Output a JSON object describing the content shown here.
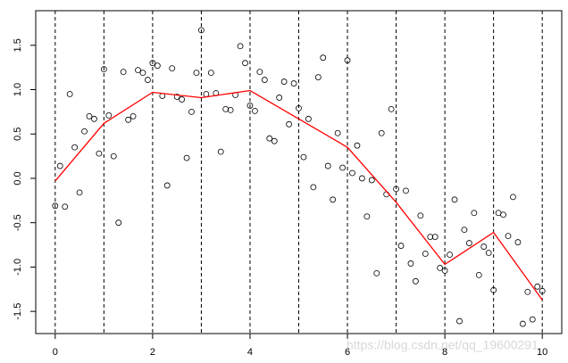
{
  "chart_data": {
    "type": "scatter",
    "x": [
      0,
      0.1,
      0.2,
      0.3,
      0.4,
      0.5,
      0.6,
      0.7,
      0.8,
      0.9,
      1,
      1.1,
      1.2,
      1.3,
      1.4,
      1.5,
      1.6,
      1.7,
      1.8,
      1.9,
      2,
      2.1,
      2.2,
      2.3,
      2.4,
      2.5,
      2.6,
      2.7,
      2.8,
      2.9,
      3,
      3.1,
      3.2,
      3.3,
      3.4,
      3.5,
      3.6,
      3.7,
      3.8,
      3.9,
      4,
      4.1,
      4.2,
      4.3,
      4.4,
      4.5,
      4.6,
      4.7,
      4.8,
      4.9,
      5,
      5.1,
      5.2,
      5.3,
      5.4,
      5.5,
      5.6,
      5.7,
      5.8,
      5.9,
      6,
      6.1,
      6.2,
      6.3,
      6.4,
      6.5,
      6.6,
      6.7,
      6.8,
      6.9,
      7,
      7.1,
      7.2,
      7.3,
      7.4,
      7.5,
      7.6,
      7.7,
      7.8,
      7.9,
      8,
      8.1,
      8.2,
      8.3,
      8.4,
      8.5,
      8.6,
      8.7,
      8.8,
      8.9,
      9,
      9.1,
      9.2,
      9.3,
      9.4,
      9.5,
      9.6,
      9.7,
      9.8,
      9.9,
      10
    ],
    "values": [
      -0.31,
      0.14,
      -0.32,
      0.95,
      0.35,
      -0.16,
      0.53,
      0.7,
      0.67,
      0.28,
      1.23,
      0.71,
      0.25,
      -0.5,
      1.2,
      0.66,
      0.7,
      1.22,
      1.19,
      1.11,
      1.3,
      1.27,
      0.93,
      -0.08,
      1.24,
      0.92,
      0.89,
      0.23,
      0.75,
      1.19,
      1.67,
      0.95,
      1.19,
      0.96,
      0.3,
      0.78,
      0.77,
      0.94,
      1.49,
      1.3,
      0.82,
      0.76,
      1.2,
      1.11,
      0.45,
      0.42,
      0.91,
      1.09,
      0.61,
      1.07,
      0.79,
      0.24,
      0.67,
      -0.1,
      1.14,
      1.36,
      0.14,
      -0.24,
      0.51,
      0.12,
      1.33,
      0.06,
      0.37,
      0,
      -0.43,
      -0.02,
      -1.07,
      0.51,
      -0.18,
      0.78,
      -0.12,
      -0.76,
      -0.14,
      -0.96,
      -1.16,
      -0.42,
      -0.85,
      -0.66,
      -0.66,
      -1.01,
      -1.04,
      -0.86,
      -0.24,
      -1.61,
      -0.58,
      -0.73,
      -0.39,
      -1.09,
      -0.77,
      -0.84,
      -1.26,
      -0.39,
      -0.41,
      -0.65,
      -0.21,
      -0.72,
      -1.64,
      -1.28,
      -1.59,
      -1.22,
      -1.27
    ],
    "line": {
      "x": [
        0,
        1,
        2,
        3,
        4,
        5,
        6,
        7,
        8,
        9,
        10
      ],
      "values": [
        -0.03,
        0.62,
        0.97,
        0.91,
        0.99,
        0.67,
        0.35,
        -0.27,
        -0.97,
        -0.61,
        -1.37
      ],
      "color": "#ff0000"
    },
    "vlines": [
      0,
      1,
      2,
      3,
      4,
      5,
      6,
      7,
      8,
      9,
      10
    ],
    "xlim": [
      -0.4,
      10.4
    ],
    "ylim": [
      -1.75,
      1.89
    ],
    "xticks": [
      0,
      2,
      4,
      6,
      8,
      10
    ],
    "yticks": [
      -1.5,
      {
        "value": -1,
        "label": "-1.0"
      },
      -0.5,
      {
        "value": 0,
        "label": "0.0"
      },
      0.5,
      {
        "value": 1,
        "label": "1.0"
      },
      1.5
    ],
    "watermark": "https://blog.csdn.net/qq_19600291"
  }
}
